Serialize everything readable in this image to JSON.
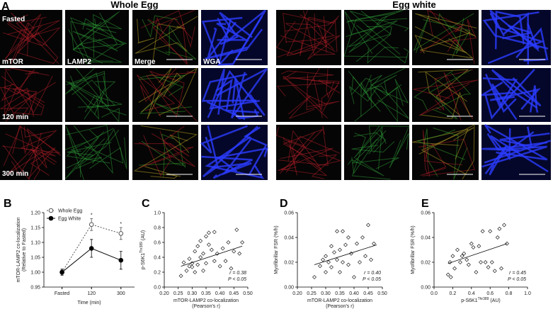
{
  "panel_a": {
    "panel_label": "A",
    "groups": [
      "Whole Egg",
      "Egg white"
    ],
    "rows": [
      "Fasted",
      "120 min",
      "300 min"
    ],
    "columns": [
      "mTOR",
      "LAMP2",
      "Merge",
      "WGA"
    ]
  },
  "chart_data": [
    {
      "type": "line",
      "panel_label": "B",
      "ylabel": [
        "mTOR-LAMP2 co-localization",
        "(Relative to Fasted)"
      ],
      "xlabel": "Time (min)",
      "categories": [
        "Fasted",
        "120",
        "300"
      ],
      "series": [
        {
          "name": "Whole Egg",
          "color": "#555555",
          "linestyle": "dashed",
          "marker_fill": "#ffffff",
          "values": [
            1.0,
            1.16,
            1.13
          ],
          "errors": [
            0.01,
            0.02,
            0.02
          ]
        },
        {
          "name": "Egg White",
          "color": "#000000",
          "linestyle": "solid",
          "marker_fill": "#000000",
          "values": [
            1.0,
            1.08,
            1.04
          ],
          "errors": [
            0.01,
            0.03,
            0.03
          ]
        }
      ],
      "annotations": [
        {
          "category": 1,
          "text": "*"
        },
        {
          "category": 2,
          "text": "*"
        }
      ],
      "ylim": [
        0.95,
        1.2
      ],
      "yticks": [
        0.95,
        {
          "value": 1,
          "label": "1.00"
        },
        1.05,
        {
          "value": 1.1,
          "label": "1.10"
        },
        1.15,
        {
          "value": 1.2,
          "label": "1.20"
        }
      ],
      "legend": "top-left"
    },
    {
      "type": "scatter",
      "panel_label": "C",
      "ylabel": {
        "main": "p-S6K1",
        "sup": "Thr389",
        "rest": " (AU)"
      },
      "xlabel": [
        "mTOR-LAMP2 co-localization",
        "(Pearson's r)"
      ],
      "x": [
        0.26,
        0.27,
        0.28,
        0.29,
        0.29,
        0.3,
        0.3,
        0.31,
        0.31,
        0.32,
        0.32,
        0.33,
        0.33,
        0.34,
        0.34,
        0.35,
        0.35,
        0.36,
        0.36,
        0.37,
        0.38,
        0.38,
        0.39,
        0.4,
        0.41,
        0.42,
        0.43,
        0.44,
        0.45,
        0.46,
        0.47,
        0.48
      ],
      "y": [
        0.15,
        0.33,
        0.22,
        0.28,
        0.38,
        0.27,
        0.32,
        0.48,
        0.2,
        0.3,
        0.55,
        0.62,
        0.4,
        0.22,
        0.45,
        0.68,
        0.32,
        0.57,
        0.73,
        0.5,
        0.35,
        0.74,
        0.45,
        0.28,
        0.52,
        0.35,
        0.6,
        0.25,
        0.48,
        0.77,
        0.45,
        0.6
      ],
      "trendline": {
        "x": [
          0.26,
          0.48
        ],
        "y": [
          0.28,
          0.55
        ]
      },
      "stats": [
        "r = 0.38",
        "P < 0.05"
      ],
      "xlim": [
        0.2,
        0.5
      ],
      "xticks": [
        {
          "value": 0.2,
          "label": "0.20"
        },
        0.25,
        {
          "value": 0.3,
          "label": "0.30"
        },
        0.35,
        {
          "value": 0.4,
          "label": "0.40"
        },
        0.45,
        {
          "value": 0.5,
          "label": "0.50"
        }
      ],
      "ylim": [
        0,
        1
      ],
      "yticks": [
        {
          "value": 0,
          "label": "0.0"
        },
        0.2,
        0.4,
        0.6,
        0.8,
        {
          "value": 1,
          "label": "1.0"
        }
      ]
    },
    {
      "type": "scatter",
      "panel_label": "D",
      "ylabel": {
        "main": "Myofibrillar FSR (%/h)"
      },
      "xlabel": [
        "mTOR-LAMP2 co-localization",
        "(Pearson's r)"
      ],
      "x": [
        0.26,
        0.28,
        0.29,
        0.3,
        0.3,
        0.31,
        0.32,
        0.32,
        0.33,
        0.34,
        0.34,
        0.35,
        0.35,
        0.36,
        0.36,
        0.37,
        0.38,
        0.38,
        0.39,
        0.4,
        0.41,
        0.42,
        0.43,
        0.44,
        0.45,
        0.46,
        0.47
      ],
      "y": [
        0.008,
        0.017,
        0.022,
        0.025,
        0.012,
        0.02,
        0.033,
        0.016,
        0.028,
        0.045,
        0.022,
        0.03,
        0.012,
        0.045,
        0.02,
        0.034,
        0.04,
        0.018,
        0.027,
        0.008,
        0.035,
        0.02,
        0.04,
        0.025,
        0.05,
        0.022,
        0.035
      ],
      "trendline": {
        "x": [
          0.26,
          0.48
        ],
        "y": [
          0.018,
          0.034
        ]
      },
      "stats": [
        "r = 0.40",
        "P < 0.05"
      ],
      "xlim": [
        0.2,
        0.5
      ],
      "xticks": [
        {
          "value": 0.2,
          "label": "0.20"
        },
        0.25,
        {
          "value": 0.3,
          "label": "0.30"
        },
        0.35,
        {
          "value": 0.4,
          "label": "0.40"
        },
        0.45,
        {
          "value": 0.5,
          "label": "0.50"
        }
      ],
      "ylim": [
        0,
        0.06
      ],
      "yticks": [
        {
          "value": 0,
          "label": "0.00"
        },
        0.02,
        0.04,
        0.06
      ]
    },
    {
      "type": "scatter",
      "panel_label": "E",
      "ylabel": {
        "main": "Myofibrillar FSR (%/h)"
      },
      "xlabel": {
        "main": "p-S6K1",
        "sup": "Thr389",
        "rest": " (AU)"
      },
      "x": [
        0.15,
        0.17,
        0.18,
        0.2,
        0.22,
        0.25,
        0.28,
        0.3,
        0.32,
        0.35,
        0.37,
        0.4,
        0.42,
        0.45,
        0.48,
        0.5,
        0.52,
        0.55,
        0.58,
        0.6,
        0.62,
        0.65,
        0.68,
        0.7,
        0.72,
        0.75,
        0.78
      ],
      "y": [
        0.01,
        0.02,
        0.008,
        0.025,
        0.015,
        0.03,
        0.02,
        0.025,
        0.027,
        0.022,
        0.018,
        0.035,
        0.032,
        0.012,
        0.033,
        0.02,
        0.045,
        0.02,
        0.016,
        0.045,
        0.02,
        0.013,
        0.04,
        0.047,
        0.015,
        0.05,
        0.035
      ],
      "trendline": {
        "x": [
          0.15,
          0.78
        ],
        "y": [
          0.019,
          0.035
        ]
      },
      "stats": [
        "r = 0.45",
        "P < 0.05"
      ],
      "xlim": [
        0,
        1
      ],
      "xticks": [
        {
          "value": 0,
          "label": "0.0"
        },
        0.2,
        0.4,
        0.6,
        0.8,
        {
          "value": 1,
          "label": "1.0"
        }
      ],
      "ylim": [
        0,
        0.06
      ],
      "yticks": [
        {
          "value": 0,
          "label": "0.00"
        },
        0.02,
        0.04,
        0.06
      ]
    }
  ]
}
